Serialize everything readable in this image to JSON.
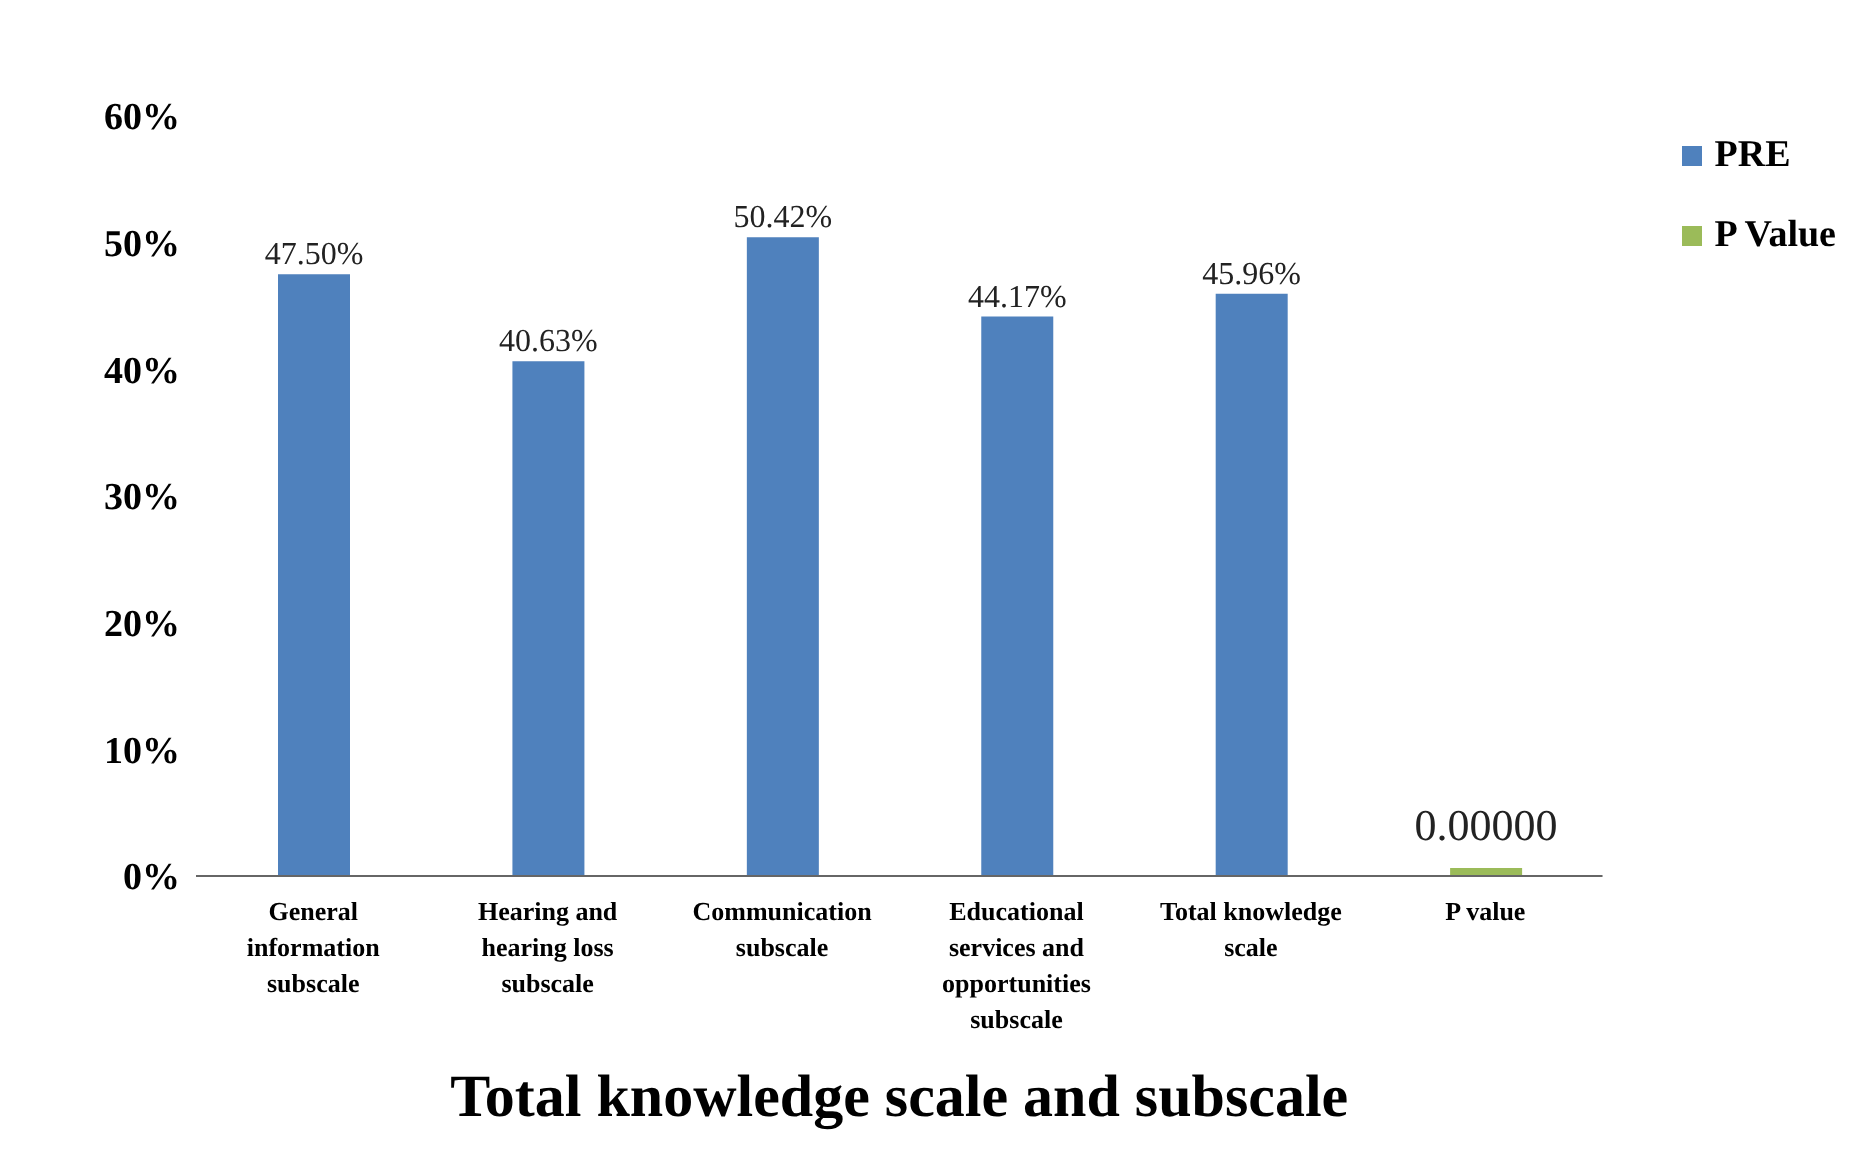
{
  "chart_data": {
    "type": "bar",
    "xlabel": "Total knowledge scale and subscale",
    "categories": [
      "General information subscale",
      "Hearing and hearing loss subscale",
      "Communication subscale",
      "Educational services and opportunities subscale",
      "Total knowledge scale",
      "P value"
    ],
    "series": [
      {
        "name": "PRE",
        "color": "#4f81bd",
        "values": [
          47.5,
          40.63,
          50.42,
          44.17,
          45.96,
          null
        ],
        "value_labels": [
          "47.50%",
          "40.63%",
          "50.42%",
          "44.17%",
          "45.96%",
          null
        ]
      },
      {
        "name": "P Value",
        "color": "#9bbb59",
        "values": [
          null,
          null,
          null,
          null,
          null,
          0
        ],
        "value_labels": [
          null,
          null,
          null,
          null,
          null,
          "0.00000"
        ]
      }
    ],
    "ylim": [
      0,
      60
    ],
    "yticks": [
      {
        "value": 0,
        "label": "0%"
      },
      {
        "value": 10,
        "label": "10%"
      },
      {
        "value": 20,
        "label": "20%"
      },
      {
        "value": 30,
        "label": "30%"
      },
      {
        "value": 40,
        "label": "40%"
      },
      {
        "value": 50,
        "label": "50%"
      },
      {
        "value": 60,
        "label": "60%"
      }
    ],
    "grid": false,
    "legend": "right"
  }
}
